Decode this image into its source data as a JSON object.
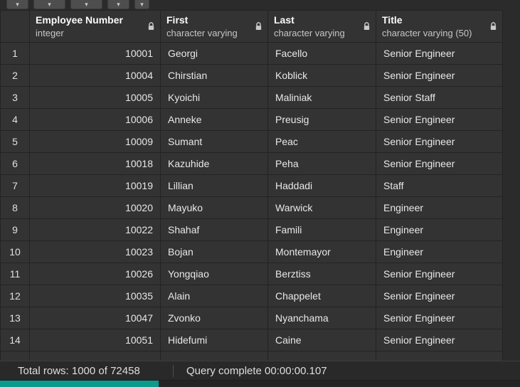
{
  "colors": {
    "progress_teal": "#0b9a8e"
  },
  "toolbar": {
    "buttons": [
      {
        "name": "save-data-button",
        "glyph": "▾"
      },
      {
        "name": "save-results-to-file-button",
        "glyph": "▾"
      },
      {
        "name": "copy-rows-button",
        "glyph": "▾"
      },
      {
        "name": "paste-rows-button",
        "glyph": "▾"
      },
      {
        "name": "delete-rows-button",
        "glyph": "▾"
      }
    ]
  },
  "grid": {
    "columns": [
      {
        "label": "Employee Number",
        "type": "integer"
      },
      {
        "label": "First",
        "type": "character varying"
      },
      {
        "label": "Last",
        "type": "character varying"
      },
      {
        "label": "Title",
        "type": "character varying (50)"
      }
    ],
    "rows": [
      {
        "num": "1",
        "cells": [
          "10001",
          "Georgi",
          "Facello",
          "Senior Engineer"
        ]
      },
      {
        "num": "2",
        "cells": [
          "10004",
          "Chirstian",
          "Koblick",
          "Senior Engineer"
        ]
      },
      {
        "num": "3",
        "cells": [
          "10005",
          "Kyoichi",
          "Maliniak",
          "Senior Staff"
        ]
      },
      {
        "num": "4",
        "cells": [
          "10006",
          "Anneke",
          "Preusig",
          "Senior Engineer"
        ]
      },
      {
        "num": "5",
        "cells": [
          "10009",
          "Sumant",
          "Peac",
          "Senior Engineer"
        ]
      },
      {
        "num": "6",
        "cells": [
          "10018",
          "Kazuhide",
          "Peha",
          "Senior Engineer"
        ]
      },
      {
        "num": "7",
        "cells": [
          "10019",
          "Lillian",
          "Haddadi",
          "Staff"
        ]
      },
      {
        "num": "8",
        "cells": [
          "10020",
          "Mayuko",
          "Warwick",
          "Engineer"
        ]
      },
      {
        "num": "9",
        "cells": [
          "10022",
          "Shahaf",
          "Famili",
          "Engineer"
        ]
      },
      {
        "num": "10",
        "cells": [
          "10023",
          "Bojan",
          "Montemayor",
          "Engineer"
        ]
      },
      {
        "num": "11",
        "cells": [
          "10026",
          "Yongqiao",
          "Berztiss",
          "Senior Engineer"
        ]
      },
      {
        "num": "12",
        "cells": [
          "10035",
          "Alain",
          "Chappelet",
          "Senior Engineer"
        ]
      },
      {
        "num": "13",
        "cells": [
          "10047",
          "Zvonko",
          "Nyanchama",
          "Senior Engineer"
        ]
      },
      {
        "num": "14",
        "cells": [
          "10051",
          "Hidefumi",
          "Caine",
          "Senior Engineer"
        ]
      }
    ]
  },
  "statusbar": {
    "total_rows": "Total rows: 1000 of 72458",
    "query_complete": "Query complete 00:00:00.107"
  }
}
